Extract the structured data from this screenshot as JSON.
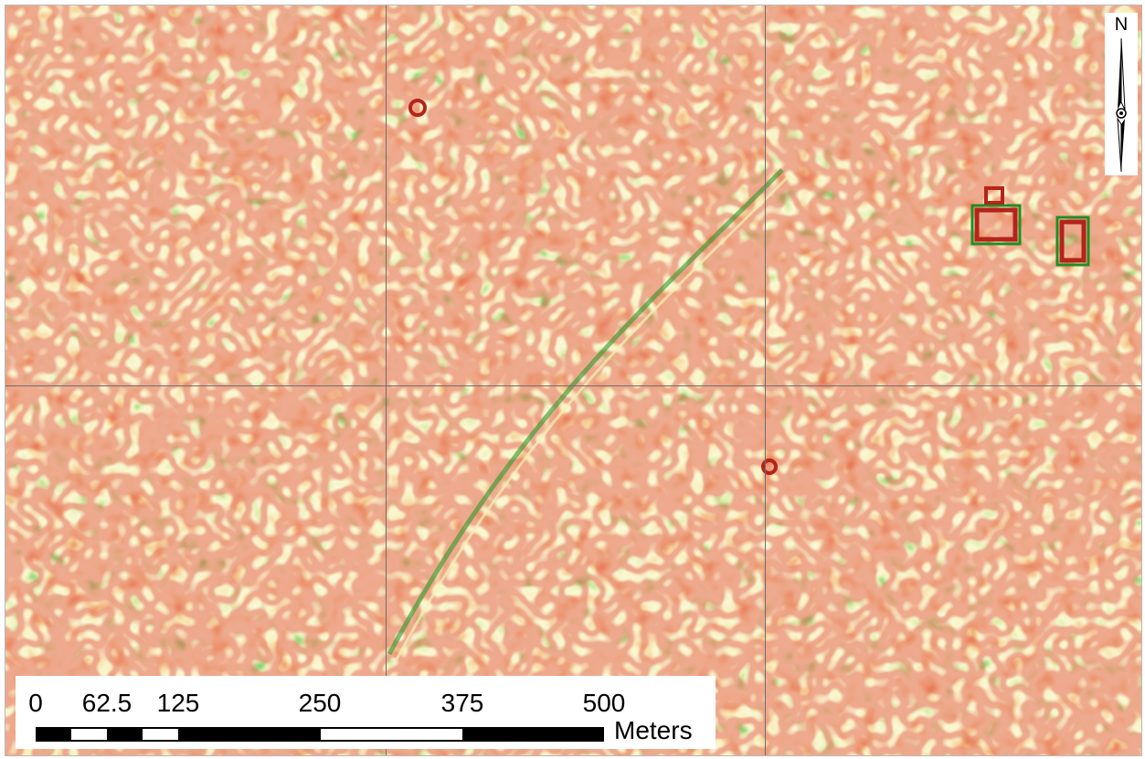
{
  "map": {
    "north_label": "N",
    "scale_bar": {
      "ticks": [
        "0",
        "62.5",
        "125",
        "250",
        "375",
        "500"
      ],
      "unit": "Meters"
    },
    "colors": {
      "background": "#f0ecaa",
      "low": "#1e9a22",
      "mid": "#f3efa5",
      "high": "#c0231a",
      "grid": "#6f6f6f"
    }
  }
}
